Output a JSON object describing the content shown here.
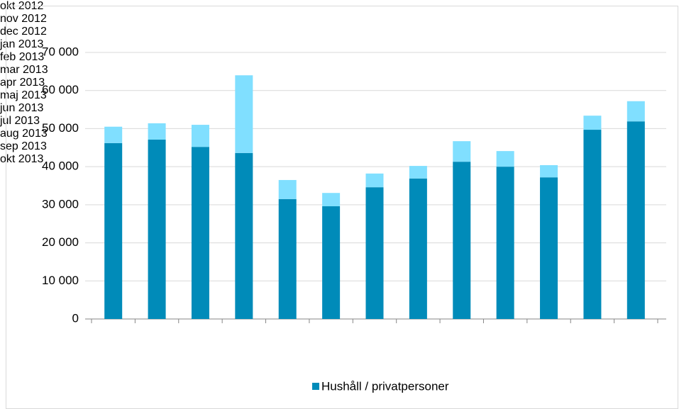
{
  "chart_data": {
    "type": "bar",
    "stacked": true,
    "categories": [
      "okt 2012",
      "nov 2012",
      "dec 2012",
      "jan 2013",
      "feb 2013",
      "mar 2013",
      "apr 2013",
      "maj 2013",
      "jun 2013",
      "jul 2013",
      "aug 2013",
      "sep 2013",
      "okt 2013"
    ],
    "series": [
      {
        "name": "Hushåll / privatpersoner",
        "color": "#008bb9",
        "values": [
          46200,
          47100,
          45200,
          43600,
          31500,
          29600,
          34600,
          36900,
          41300,
          40000,
          37200,
          49700,
          51900
        ]
      },
      {
        "color": "#80dfff",
        "values": [
          4300,
          4300,
          5800,
          20400,
          5000,
          3500,
          3600,
          3300,
          5400,
          4100,
          3200,
          3700,
          5300
        ]
      }
    ],
    "ylim": [
      0,
      70000
    ],
    "yticks": [
      0,
      {
        "value": 10000,
        "label": "10 000"
      },
      {
        "value": 20000,
        "label": "20 000"
      },
      {
        "value": 30000,
        "label": "30 000"
      },
      {
        "value": 40000,
        "label": "40 000"
      },
      {
        "value": 50000,
        "label": "50 000"
      },
      {
        "value": 60000,
        "label": "60 000"
      },
      {
        "value": 70000,
        "label": "70 000"
      }
    ],
    "grid": true,
    "legend": "bottom"
  }
}
